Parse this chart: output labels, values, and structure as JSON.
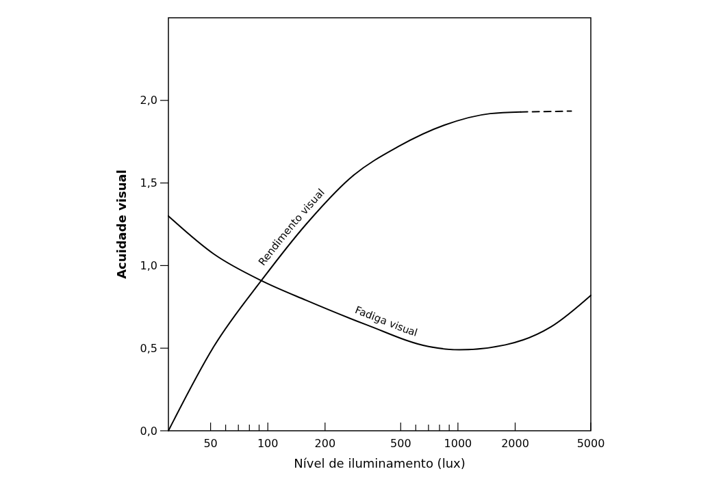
{
  "chart_data": {
    "type": "line",
    "xlabel": "Nível de iluminamento (lux)",
    "ylabel": "Acuidade visual",
    "log": "x",
    "xlim": [
      30,
      5000
    ],
    "xticks": [
      50,
      {
        "value": 60,
        "label": null
      },
      {
        "value": 70,
        "label": null
      },
      {
        "value": 80,
        "label": null
      },
      {
        "value": 90,
        "label": null
      },
      100,
      200,
      500,
      {
        "value": 600,
        "label": null
      },
      {
        "value": 700,
        "label": null
      },
      {
        "value": 800,
        "label": null
      },
      {
        "value": 900,
        "label": null
      },
      1000,
      2000,
      5000
    ],
    "ylim": [
      0,
      2.5
    ],
    "yticks": [
      {
        "value": 0,
        "label": "0,0"
      },
      {
        "value": 0.5,
        "label": "0,5"
      },
      {
        "value": 1,
        "label": "1,0"
      },
      {
        "value": 1.5,
        "label": "1,5"
      },
      {
        "value": 2,
        "label": "2,0"
      }
    ],
    "series": [
      {
        "name": "Rendimento visual",
        "color": "#000000",
        "x": [
          30,
          52,
          94,
          159,
          278,
          485,
          848,
          1479,
          2140
        ],
        "values": [
          0,
          0.51,
          0.92,
          1.25,
          1.54,
          1.72,
          1.85,
          1.92,
          1.93
        ]
      },
      {
        "color": "#000000",
        "line_style": "dashed",
        "x": [
          2140,
          3950
        ],
        "values": [
          1.93,
          1.935
        ]
      },
      {
        "name": "Fadiga visual",
        "color": "#000000",
        "x": [
          30,
          52,
          94,
          159,
          333,
          700,
          1016,
          1776,
          3090,
          5000
        ],
        "values": [
          1.3,
          1.07,
          0.905,
          0.79,
          0.64,
          0.51,
          0.49,
          0.52,
          0.63,
          0.82
        ]
      }
    ]
  }
}
